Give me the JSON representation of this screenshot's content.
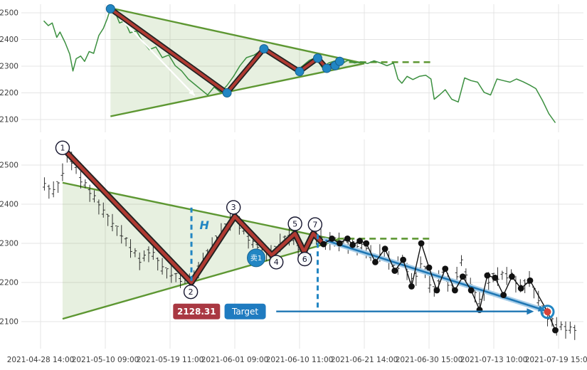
{
  "axes": {
    "x_labels": [
      "2021-04-28 14:00",
      "2021-05-10 09:00",
      "2021-05-19 11:00",
      "2021-06-01 09:00",
      "2021-06-10 11:00",
      "2021-06-21 14:00",
      "2021-06-30 15:00",
      "2021-07-13 10:00",
      "2021-07-19 15:00"
    ],
    "y_labels_top": [
      "2100",
      "2200",
      "2300",
      "2400",
      "2500"
    ],
    "y_labels_bottom": [
      "2100",
      "2200",
      "2300",
      "2400",
      "2500"
    ]
  },
  "colors": {
    "grid": "#e4e4e4",
    "tick_text": "#3c3c3c",
    "green_line": "#3c9040",
    "wedge": "#5d9732",
    "wedge_fill": "rgba(93,151,50,0.15)",
    "zig_red": "#b03a32",
    "zig_edge": "#222222",
    "blue": "#2286c3",
    "trend_blue": "#1f77b4",
    "trend_halo": "#aacfe9",
    "candle": "#111111",
    "dot_black": "#111111",
    "price_box": "#a93842",
    "target_box": "#1f7bc0",
    "target_dot": "#d84339",
    "white": "#ffffff"
  },
  "chart_data": [
    {
      "type": "line",
      "panel": "top",
      "title": "",
      "ylim": [
        2050,
        2560
      ],
      "wedge": {
        "upper": [
          [
            1.08,
            2518
          ],
          [
            5.0,
            2310
          ]
        ],
        "lower": [
          [
            1.08,
            2112
          ],
          [
            5.0,
            2310
          ]
        ]
      },
      "dashed_level": {
        "from": [
          4.6,
          2315
        ],
        "to": [
          6.08,
          2315
        ]
      },
      "inner_arrow": {
        "from": [
          1.16,
          2498
        ],
        "to": [
          2.38,
          2190
        ]
      },
      "price_line": [
        [
          0.05,
          2470
        ],
        [
          0.12,
          2452
        ],
        [
          0.18,
          2462
        ],
        [
          0.25,
          2408
        ],
        [
          0.3,
          2428
        ],
        [
          0.38,
          2388
        ],
        [
          0.45,
          2345
        ],
        [
          0.5,
          2282
        ],
        [
          0.55,
          2328
        ],
        [
          0.62,
          2338
        ],
        [
          0.68,
          2318
        ],
        [
          0.75,
          2355
        ],
        [
          0.82,
          2348
        ],
        [
          0.9,
          2415
        ],
        [
          0.97,
          2442
        ],
        [
          1.03,
          2478
        ],
        [
          1.08,
          2516
        ],
        [
          1.15,
          2504
        ],
        [
          1.22,
          2462
        ],
        [
          1.3,
          2470
        ],
        [
          1.38,
          2425
        ],
        [
          1.48,
          2432
        ],
        [
          1.58,
          2392
        ],
        [
          1.68,
          2362
        ],
        [
          1.78,
          2372
        ],
        [
          1.88,
          2332
        ],
        [
          1.98,
          2342
        ],
        [
          2.08,
          2302
        ],
        [
          2.18,
          2282
        ],
        [
          2.28,
          2252
        ],
        [
          2.38,
          2232
        ],
        [
          2.48,
          2212
        ],
        [
          2.58,
          2192
        ],
        [
          2.68,
          2222
        ],
        [
          2.78,
          2202
        ],
        [
          2.88,
          2228
        ],
        [
          2.98,
          2262
        ],
        [
          3.08,
          2302
        ],
        [
          3.18,
          2332
        ],
        [
          3.3,
          2342
        ],
        [
          3.45,
          2366
        ],
        [
          3.55,
          2342
        ],
        [
          3.65,
          2330
        ],
        [
          3.75,
          2312
        ],
        [
          3.85,
          2300
        ],
        [
          3.95,
          2282
        ],
        [
          4.05,
          2302
        ],
        [
          4.15,
          2322
        ],
        [
          4.25,
          2332
        ],
        [
          4.35,
          2295
        ],
        [
          4.45,
          2312
        ],
        [
          4.55,
          2320
        ],
        [
          4.65,
          2310
        ],
        [
          4.75,
          2322
        ],
        [
          4.85,
          2312
        ],
        [
          4.95,
          2316
        ],
        [
          5.05,
          2310
        ],
        [
          5.15,
          2320
        ],
        [
          5.25,
          2312
        ],
        [
          5.35,
          2302
        ],
        [
          5.45,
          2312
        ],
        [
          5.52,
          2252
        ],
        [
          5.58,
          2236
        ],
        [
          5.66,
          2262
        ],
        [
          5.75,
          2250
        ],
        [
          5.85,
          2262
        ],
        [
          5.95,
          2266
        ],
        [
          6.03,
          2252
        ],
        [
          6.08,
          2176
        ],
        [
          6.16,
          2192
        ],
        [
          6.25,
          2212
        ],
        [
          6.35,
          2176
        ],
        [
          6.45,
          2166
        ],
        [
          6.55,
          2256
        ],
        [
          6.65,
          2246
        ],
        [
          6.75,
          2240
        ],
        [
          6.85,
          2202
        ],
        [
          6.95,
          2192
        ],
        [
          7.05,
          2252
        ],
        [
          7.15,
          2246
        ],
        [
          7.25,
          2240
        ],
        [
          7.35,
          2252
        ],
        [
          7.45,
          2242
        ],
        [
          7.55,
          2230
        ],
        [
          7.65,
          2216
        ],
        [
          7.75,
          2172
        ],
        [
          7.85,
          2122
        ],
        [
          7.95,
          2088
        ]
      ],
      "zigzag": [
        [
          1.08,
          2515
        ],
        [
          2.88,
          2200
        ],
        [
          3.45,
          2365
        ],
        [
          4.0,
          2280
        ],
        [
          4.28,
          2330
        ],
        [
          4.42,
          2292
        ],
        [
          4.62,
          2318
        ]
      ],
      "pivot_dots": [
        [
          1.08,
          2515
        ],
        [
          2.88,
          2200
        ],
        [
          3.45,
          2365
        ],
        [
          4.0,
          2280
        ],
        [
          4.28,
          2330
        ],
        [
          4.42,
          2292
        ],
        [
          4.55,
          2302
        ],
        [
          4.62,
          2318
        ]
      ]
    },
    {
      "type": "candlestick",
      "panel": "bottom",
      "title": "",
      "ylim": [
        2050,
        2560
      ],
      "wedge": {
        "upper": [
          [
            0.34,
            2455
          ],
          [
            4.6,
            2308
          ]
        ],
        "lower": [
          [
            0.34,
            2107
          ],
          [
            4.6,
            2308
          ]
        ]
      },
      "dashed_level": {
        "from": [
          4.42,
          2312
        ],
        "to": [
          6.02,
          2312
        ]
      },
      "price_path": [
        [
          0.05,
          2448
        ],
        [
          0.18,
          2430
        ],
        [
          0.3,
          2455
        ],
        [
          0.42,
          2528
        ],
        [
          0.52,
          2498
        ],
        [
          0.65,
          2455
        ],
        [
          0.8,
          2422
        ],
        [
          0.95,
          2385
        ],
        [
          1.1,
          2352
        ],
        [
          1.25,
          2322
        ],
        [
          1.4,
          2285
        ],
        [
          1.55,
          2252
        ],
        [
          1.7,
          2282
        ],
        [
          1.85,
          2242
        ],
        [
          2.0,
          2222
        ],
        [
          2.15,
          2210
        ],
        [
          2.33,
          2200
        ],
        [
          2.45,
          2238
        ],
        [
          2.6,
          2278
        ],
        [
          2.75,
          2318
        ],
        [
          2.9,
          2350
        ],
        [
          3.0,
          2368
        ],
        [
          3.1,
          2338
        ],
        [
          3.25,
          2302
        ],
        [
          3.4,
          2282
        ],
        [
          3.57,
          2270
        ],
        [
          3.7,
          2300
        ],
        [
          3.85,
          2320
        ],
        [
          3.95,
          2292
        ],
        [
          4.07,
          2280
        ],
        [
          4.18,
          2312
        ],
        [
          4.28,
          2320
        ],
        [
          4.4,
          2302
        ],
        [
          4.55,
          2306
        ],
        [
          4.7,
          2300
        ],
        [
          4.85,
          2295
        ],
        [
          5.0,
          2290
        ],
        [
          5.15,
          2262
        ],
        [
          5.3,
          2280
        ],
        [
          5.45,
          2235
        ],
        [
          5.6,
          2255
        ],
        [
          5.75,
          2195
        ],
        [
          5.9,
          2255
        ],
        [
          6.05,
          2170
        ],
        [
          6.2,
          2225
        ],
        [
          6.35,
          2185
        ],
        [
          6.5,
          2250
        ],
        [
          6.65,
          2185
        ],
        [
          6.8,
          2150
        ],
        [
          6.95,
          2215
        ],
        [
          7.1,
          2215
        ],
        [
          7.25,
          2220
        ],
        [
          7.4,
          2185
        ],
        [
          7.55,
          2205
        ],
        [
          7.7,
          2150
        ],
        [
          7.85,
          2105
        ],
        [
          8.0,
          2085
        ],
        [
          8.15,
          2080
        ],
        [
          8.3,
          2075
        ]
      ],
      "zigzag": [
        [
          0.42,
          2530
        ],
        [
          2.33,
          2200
        ],
        [
          3.0,
          2369
        ],
        [
          3.57,
          2270
        ],
        [
          3.93,
          2325
        ],
        [
          4.07,
          2278
        ],
        [
          4.21,
          2325
        ],
        [
          4.35,
          2302
        ]
      ],
      "pivot_labels": [
        {
          "n": "1",
          "t": 0.34,
          "v": 2544
        },
        {
          "n": "2",
          "t": 2.32,
          "v": 2176
        },
        {
          "n": "3",
          "t": 2.98,
          "v": 2392
        },
        {
          "n": "4",
          "t": 3.64,
          "v": 2252
        },
        {
          "n": "5",
          "t": 3.93,
          "v": 2350
        },
        {
          "n": "6",
          "t": 4.08,
          "v": 2260
        },
        {
          "n": "7",
          "t": 4.24,
          "v": 2348
        }
      ],
      "dots_line": [
        [
          4.37,
          2298
        ],
        [
          4.5,
          2312
        ],
        [
          4.62,
          2300
        ],
        [
          4.74,
          2312
        ],
        [
          4.82,
          2296
        ],
        [
          4.93,
          2306
        ],
        [
          5.03,
          2300
        ],
        [
          5.17,
          2252
        ],
        [
          5.32,
          2286
        ],
        [
          5.47,
          2230
        ],
        [
          5.6,
          2258
        ],
        [
          5.73,
          2190
        ],
        [
          5.88,
          2300
        ],
        [
          6.0,
          2238
        ],
        [
          6.12,
          2180
        ],
        [
          6.25,
          2235
        ],
        [
          6.4,
          2180
        ],
        [
          6.52,
          2215
        ],
        [
          6.65,
          2180
        ],
        [
          6.78,
          2130
        ],
        [
          6.9,
          2218
        ],
        [
          7.02,
          2212
        ],
        [
          7.15,
          2168
        ],
        [
          7.28,
          2215
        ],
        [
          7.42,
          2185
        ],
        [
          7.56,
          2205
        ],
        [
          7.83,
          2125
        ],
        [
          7.95,
          2078
        ]
      ],
      "trend_line": {
        "from": [
          4.4,
          2308
        ],
        "to": [
          7.8,
          2128
        ]
      },
      "target_point": {
        "t": 7.83,
        "v": 2125
      },
      "measure_lines": [
        {
          "t": 2.33,
          "v_from": 2204,
          "v_to": 2396
        },
        {
          "t": 4.28,
          "v_from": 2136,
          "v_to": 2332
        }
      ],
      "h_labels": [
        {
          "text": "H",
          "t": 2.53,
          "v": 2336
        },
        {
          "text": "H",
          "t": 4.11,
          "v": 2253
        }
      ],
      "sell_marker": {
        "text": "卖1",
        "t": 3.33,
        "v": 2263
      },
      "price_label": {
        "text": "2128.31",
        "t": 2.41,
        "v": 2126
      },
      "target_label": {
        "text": "Target",
        "t": 3.16,
        "v": 2126
      },
      "target_arrow": {
        "from": [
          3.64,
          2126
        ],
        "to": [
          7.62,
          2126
        ]
      }
    }
  ]
}
